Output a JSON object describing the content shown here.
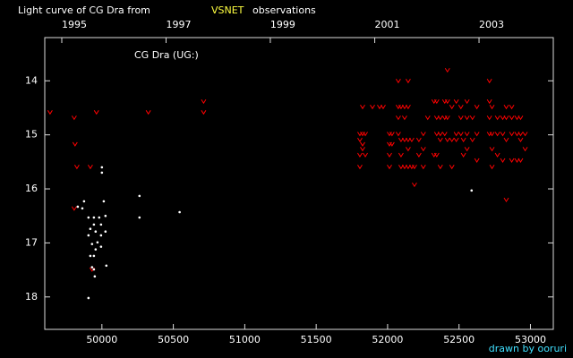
{
  "chart_data": {
    "type": "scatter",
    "title": "Light curve of CG Dra from",
    "title_highlight": "VSNET",
    "title_end": "observations",
    "annotation": "CG Dra (UG:)",
    "credit": "drawn by ooruri",
    "xlim": [
      49600,
      53160
    ],
    "ylim": [
      18.6,
      13.2
    ],
    "xticks": [
      50000,
      50500,
      51000,
      51500,
      52000,
      52500,
      53000
    ],
    "yticks": [
      14,
      15,
      16,
      17,
      18
    ],
    "x2ticks": [
      {
        "value": 49719,
        "label": "1995"
      },
      {
        "value": 50449,
        "label": "1997"
      },
      {
        "value": 51179,
        "label": "1999"
      },
      {
        "value": 51910,
        "label": "2001"
      },
      {
        "value": 52640,
        "label": "2003"
      }
    ],
    "series": [
      {
        "color": "#ff0000",
        "marker": "v",
        "x": [
          49637,
          49806,
          49812,
          49825,
          49806,
          49919,
          49962,
          49931,
          50325,
          50712,
          50712,
          51806,
          51806,
          51806,
          51806,
          51825,
          51825,
          51825,
          51825,
          51844,
          51844,
          51894,
          51944,
          51969,
          52013,
          52013,
          52013,
          52013,
          52031,
          52031,
          52075,
          52075,
          52075,
          52075,
          52094,
          52094,
          52094,
          52094,
          52119,
          52119,
          52119,
          52119,
          52144,
          52144,
          52144,
          52144,
          52144,
          52169,
          52169,
          52188,
          52188,
          52219,
          52219,
          52250,
          52250,
          52250,
          52281,
          52325,
          52325,
          52344,
          52344,
          52344,
          52344,
          52369,
          52369,
          52369,
          52369,
          52400,
          52400,
          52400,
          52419,
          52419,
          52419,
          52419,
          52450,
          52450,
          52450,
          52481,
          52481,
          52481,
          52513,
          52513,
          52513,
          52531,
          52531,
          52556,
          52556,
          52556,
          52556,
          52594,
          52594,
          52625,
          52625,
          52625,
          52713,
          52713,
          52713,
          52713,
          52731,
          52731,
          52731,
          52731,
          52769,
          52769,
          52769,
          52806,
          52806,
          52806,
          52831,
          52831,
          52831,
          52831,
          52869,
          52869,
          52869,
          52869,
          52906,
          52906,
          52906,
          52931,
          52931,
          52931,
          52931,
          52963,
          52963
        ],
        "values": [
          14.58,
          14.68,
          15.17,
          15.59,
          16.36,
          15.59,
          14.58,
          17.49,
          14.58,
          14.38,
          14.58,
          14.98,
          15.09,
          15.37,
          15.59,
          14.48,
          14.98,
          15.17,
          15.26,
          14.98,
          15.37,
          14.48,
          14.48,
          14.48,
          14.98,
          15.17,
          15.37,
          15.59,
          14.98,
          15.17,
          14.0,
          14.48,
          14.68,
          14.98,
          14.48,
          15.09,
          15.37,
          15.59,
          14.48,
          14.68,
          15.09,
          15.59,
          14.0,
          14.48,
          15.09,
          15.26,
          15.59,
          15.09,
          15.59,
          15.92,
          15.59,
          15.09,
          15.37,
          14.98,
          15.26,
          15.59,
          14.68,
          14.38,
          15.37,
          14.38,
          14.68,
          14.98,
          15.37,
          14.68,
          14.98,
          15.09,
          15.59,
          14.38,
          14.68,
          14.98,
          13.8,
          14.38,
          14.68,
          15.09,
          14.48,
          15.09,
          15.59,
          14.38,
          14.98,
          15.09,
          14.48,
          14.68,
          14.98,
          15.09,
          15.37,
          14.38,
          14.68,
          14.98,
          15.26,
          14.68,
          15.09,
          14.48,
          14.98,
          15.47,
          14.0,
          14.38,
          14.68,
          14.98,
          14.48,
          14.98,
          15.26,
          15.59,
          14.68,
          14.98,
          15.37,
          14.68,
          14.98,
          15.47,
          14.48,
          14.68,
          15.09,
          16.2,
          14.48,
          14.68,
          14.98,
          15.47,
          14.68,
          14.98,
          15.47,
          14.68,
          14.98,
          15.09,
          15.47,
          14.98,
          15.26
        ]
      },
      {
        "color": "#ffffff",
        "marker": "dot",
        "x": [
          50000,
          50000,
          49863,
          49875,
          49906,
          49919,
          49944,
          49981,
          49994,
          49906,
          49944,
          49956,
          49969,
          49956,
          49931,
          49919,
          49944,
          49931,
          49950,
          49944,
          49906,
          49994,
          49994,
          50025,
          50025,
          50013,
          50031,
          50263,
          50263,
          50544,
          52588,
          49831
        ],
        "values": [
          15.6,
          15.7,
          16.36,
          16.23,
          16.53,
          16.74,
          16.53,
          16.53,
          16.66,
          16.86,
          16.66,
          16.79,
          16.99,
          17.12,
          17.02,
          17.24,
          17.24,
          17.45,
          17.62,
          17.49,
          18.02,
          16.86,
          17.07,
          16.5,
          16.79,
          16.23,
          17.42,
          16.13,
          16.53,
          16.43,
          16.03,
          16.33
        ]
      }
    ]
  }
}
